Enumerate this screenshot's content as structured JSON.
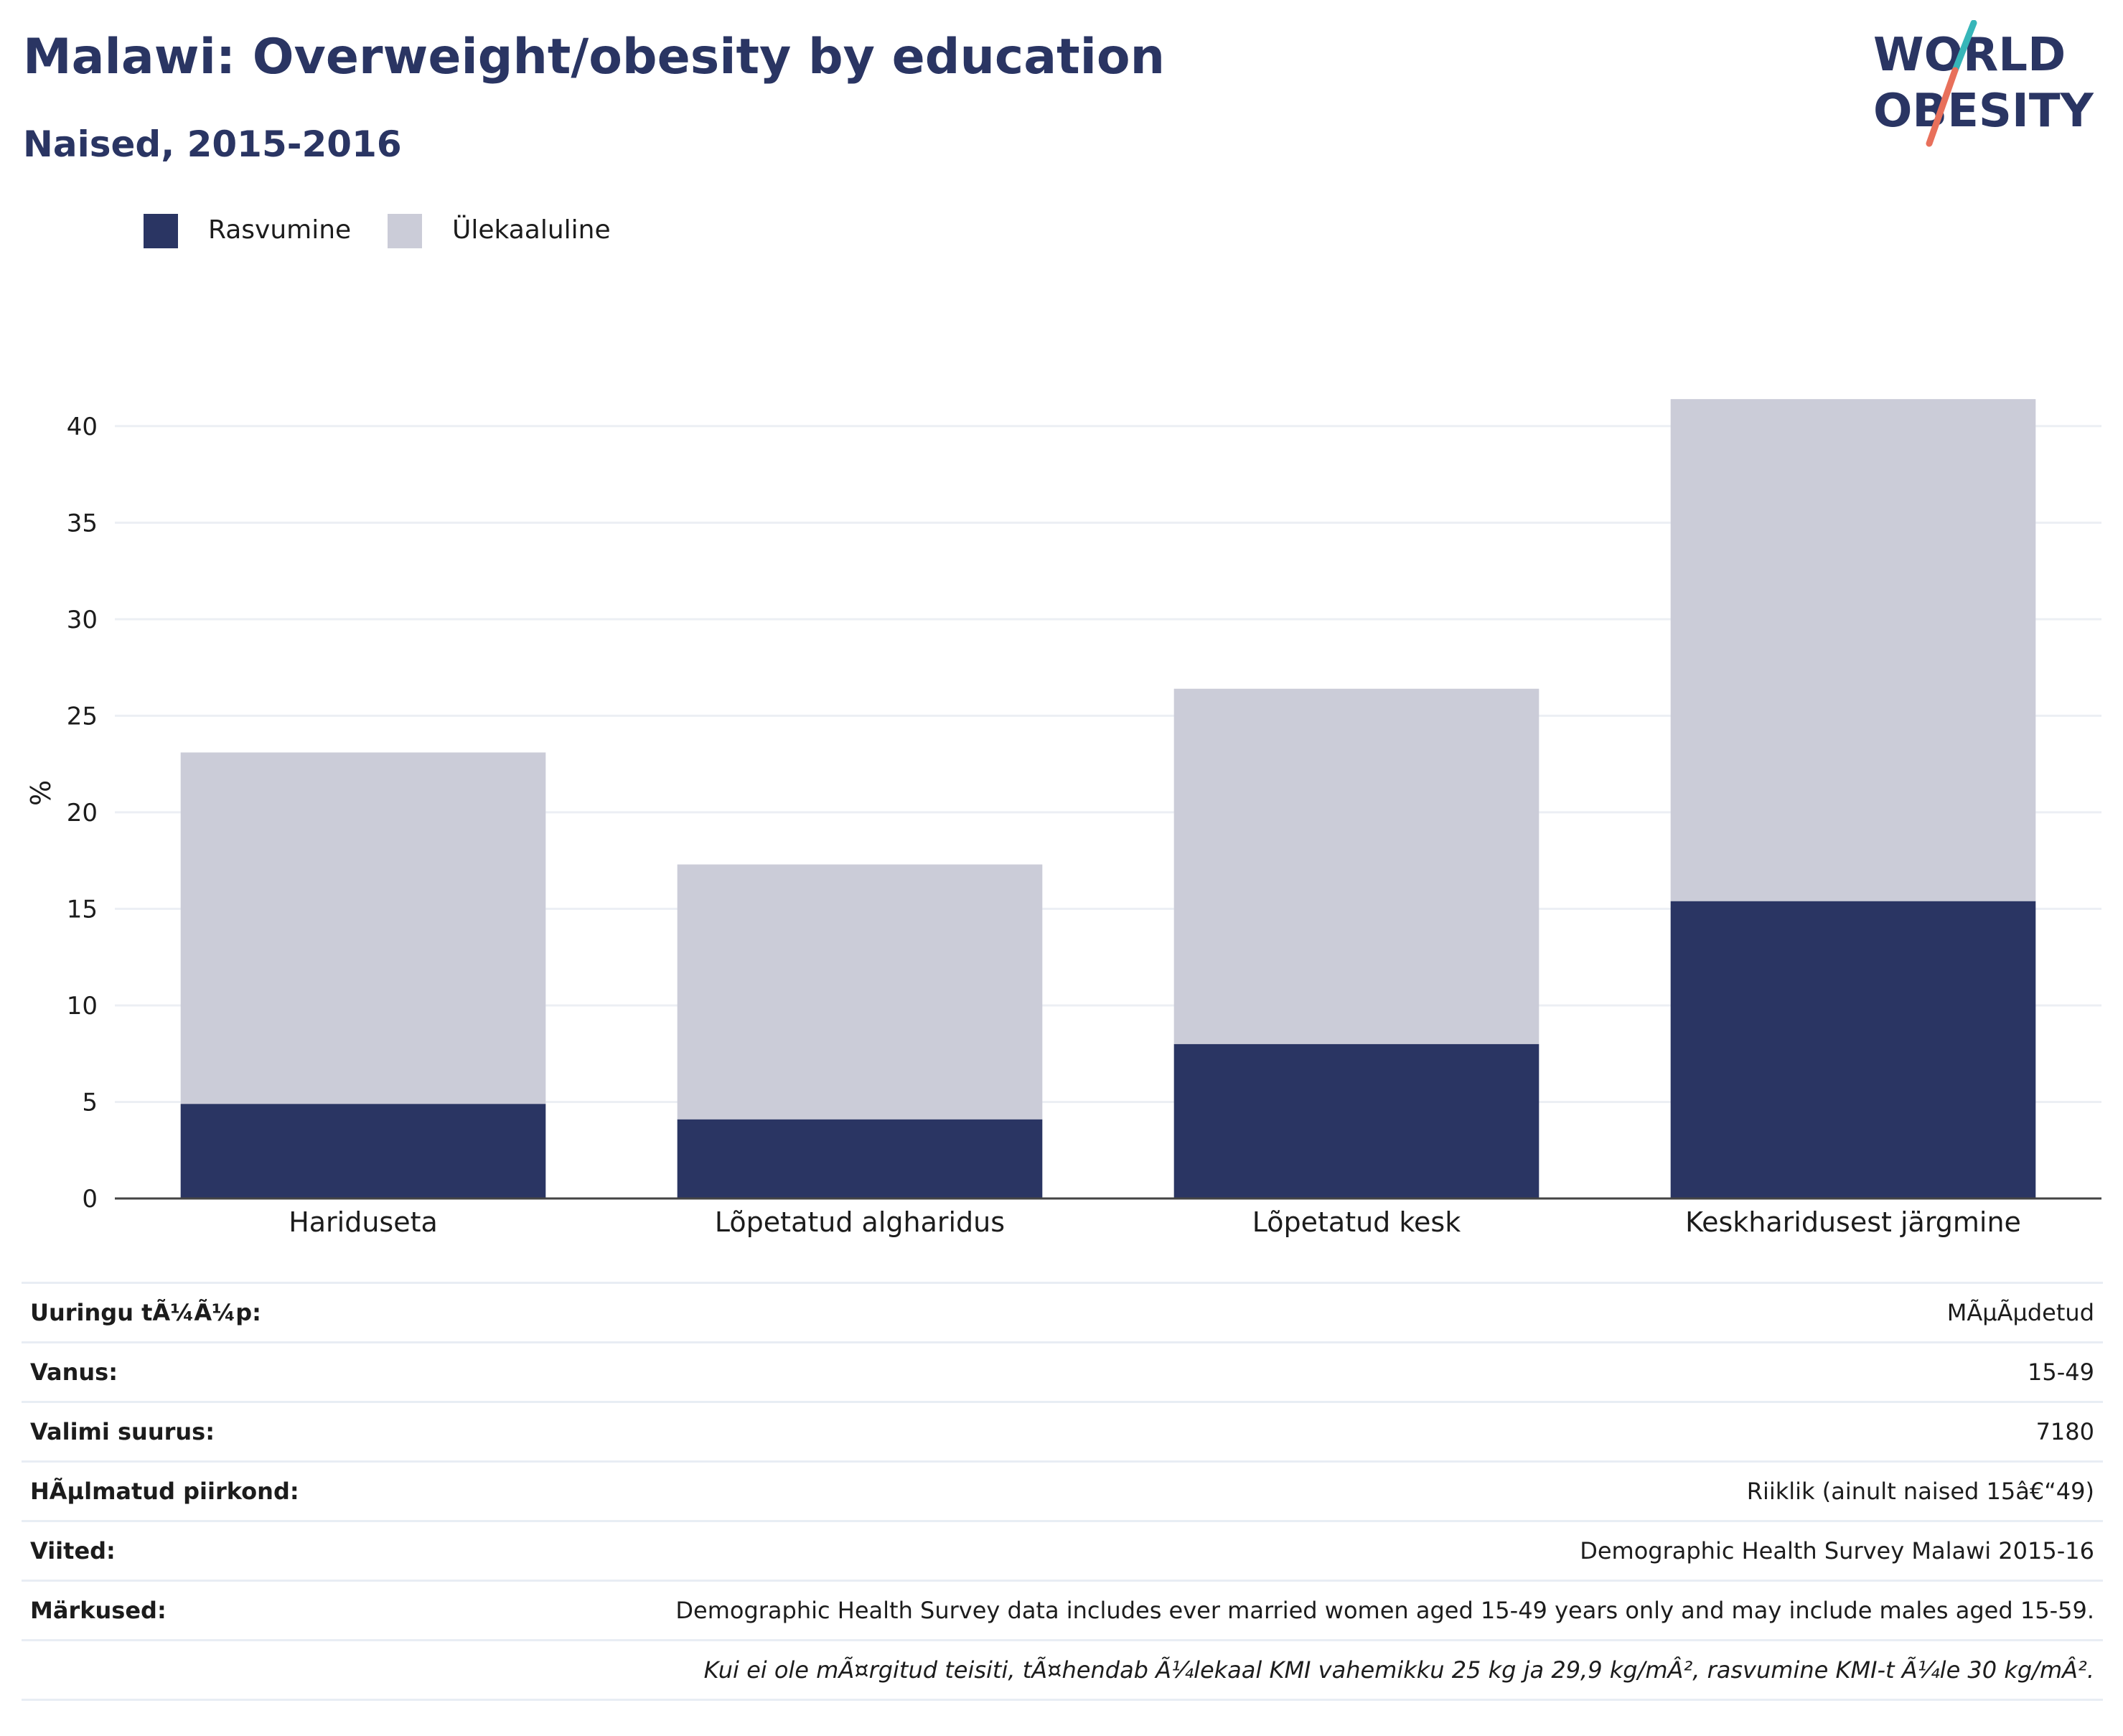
{
  "title": "Malawi: Overweight/obesity by education",
  "subtitle": "Naised, 2015-2016",
  "logo": {
    "line1": "WORLD",
    "line2": "OBESITY"
  },
  "colors": {
    "obesity": "#2a3563",
    "overweight": "#cbccd8",
    "title": "#2a3563",
    "grid": "#eceff4",
    "axis": "#444444",
    "logo_slash_teal": "#37b6b9",
    "logo_slash_red": "#e8705b"
  },
  "legend": [
    {
      "label": "Rasvumine",
      "color": "#2a3563"
    },
    {
      "label": "Ülekaaluline",
      "color": "#cbccd8"
    }
  ],
  "chart_data": {
    "type": "bar",
    "stacked": true,
    "categories": [
      "Hariduseta",
      "Lõpetatud algharidus",
      "Lõpetatud kesk",
      "Keskharidusest järgmine"
    ],
    "series": [
      {
        "name": "Rasvumine",
        "values": [
          4.9,
          4.1,
          8.0,
          15.4
        ]
      },
      {
        "name": "Ülekaaluline",
        "values": [
          18.2,
          13.2,
          18.4,
          26.0
        ]
      }
    ],
    "ylabel": "%",
    "ylim": [
      0,
      42
    ],
    "yticks": [
      0,
      5,
      10,
      15,
      20,
      25,
      30,
      35,
      40
    ],
    "grid": true,
    "legend_position": "top-left"
  },
  "info": {
    "rows": [
      {
        "key": "Uuringu tÃ¼Ã¼p:",
        "value": "MÃµÃµdetud"
      },
      {
        "key": "Vanus:",
        "value": "15-49"
      },
      {
        "key": "Valimi suurus:",
        "value": "7180"
      },
      {
        "key": "HÃµlmatud piirkond:",
        "value": "Riiklik (ainult naised 15â€“49)"
      },
      {
        "key": "Viited:",
        "value": "Demographic Health Survey Malawi 2015-16"
      },
      {
        "key": "Märkused:",
        "value": "Demographic Health Survey data includes ever married women aged 15-49 years only and may include males aged 15-59."
      }
    ],
    "footnote": "Kui ei ole mÃ¤rgitud teisiti, tÃ¤hendab Ã¼lekaal KMI vahemikku 25 kg ja 29,9 kg/mÂ², rasvumine KMI-t Ã¼le 30 kg/mÂ²."
  }
}
